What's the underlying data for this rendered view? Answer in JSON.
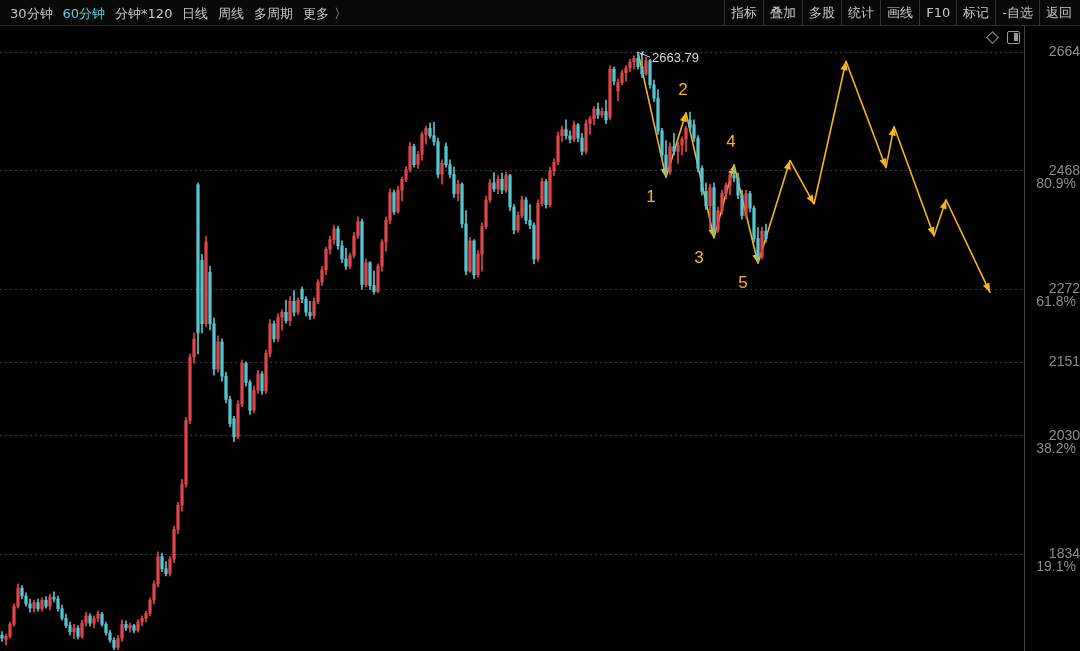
{
  "chart_data": [
    {
      "type": "other",
      "annotations": [
        "30分钟",
        "60分钟",
        "分钟*120",
        "日线",
        "周线",
        "多周期",
        "更多 〉"
      ],
      "colors": [
        "#c8c8c8",
        "#5fd0d8",
        "#c8c8c8",
        "#c8c8c8",
        "#c8c8c8",
        "#c8c8c8",
        "#c8c8c8"
      ]
    },
    {
      "type": "other",
      "annotations": [
        "指标",
        "叠加",
        "多股",
        "统计",
        "画线",
        "F10",
        "标记",
        "-自选",
        "返回"
      ],
      "colors": [
        "#c8c8c8",
        "#c8c8c8",
        "#c8c8c8",
        "#c8c8c8",
        "#c8c8c8",
        "#c8c8c8",
        "#c8c8c8",
        "#c8c8c8",
        "#c8c8c8"
      ]
    },
    {
      "type": "candlestick",
      "categories": [
        null,
        null,
        null,
        null,
        null,
        null,
        null,
        null,
        null,
        null,
        null,
        null,
        null,
        null,
        null,
        null,
        null,
        null,
        null,
        null,
        null,
        null,
        null,
        null,
        null,
        null,
        null,
        null,
        null,
        null,
        null,
        null,
        null,
        null,
        null,
        null,
        null,
        null,
        null,
        null,
        null,
        null,
        null,
        null,
        null,
        null,
        null,
        null,
        null,
        null,
        null,
        null,
        null,
        null,
        null,
        null,
        null,
        null,
        null,
        null,
        null,
        null,
        null,
        null,
        null,
        null,
        null,
        null,
        null,
        null,
        null,
        null,
        null,
        null,
        null,
        null,
        null,
        null,
        null,
        null,
        null,
        null,
        null,
        null,
        null,
        null,
        null,
        null,
        null,
        null,
        null,
        null,
        null,
        null,
        null,
        null,
        null,
        null,
        null,
        null,
        null,
        null,
        null,
        null,
        null,
        null,
        null,
        null,
        null,
        null,
        null,
        null,
        null,
        null,
        null,
        null,
        null,
        null,
        null,
        null,
        null,
        null,
        null,
        null,
        null,
        null,
        null,
        null,
        null,
        null,
        null,
        null,
        null,
        null,
        null,
        null,
        null,
        null,
        null,
        null,
        null,
        null,
        null,
        null,
        null,
        null,
        null,
        null,
        null,
        null,
        null,
        null,
        null,
        null,
        null,
        null,
        null,
        null,
        null,
        null,
        null,
        null,
        null,
        null,
        null,
        null,
        null,
        null,
        null,
        null,
        null,
        null,
        null,
        null,
        null,
        null,
        null,
        null,
        null,
        null,
        null,
        null,
        null,
        null,
        null,
        null,
        null,
        null,
        null,
        null,
        null,
        null,
        null,
        null,
        null,
        null,
        null,
        null,
        null,
        null,
        null,
        null,
        null,
        null,
        null,
        null,
        null,
        null,
        null,
        null,
        null,
        null,
        null,
        null,
        null,
        null,
        null,
        null,
        null,
        null,
        null,
        null,
        null,
        null,
        null,
        null,
        null,
        null,
        null,
        null,
        null,
        null,
        null,
        null,
        null,
        null,
        null,
        null,
        null,
        null,
        null,
        null,
        null,
        null,
        null,
        null,
        null,
        null,
        null,
        null,
        null,
        null,
        null,
        null,
        null,
        null
      ],
      "ohlc": [
        [
          1700,
          1706,
          1690,
          1695
        ],
        [
          1693,
          1702,
          1684,
          1698
        ],
        [
          1698,
          1722,
          1695,
          1718
        ],
        [
          1718,
          1752,
          1715,
          1748
        ],
        [
          1748,
          1785,
          1745,
          1778
        ],
        [
          1778,
          1782,
          1760,
          1765
        ],
        [
          1765,
          1770,
          1748,
          1752
        ],
        [
          1752,
          1760,
          1738,
          1745
        ],
        [
          1745,
          1758,
          1738,
          1754
        ],
        [
          1754,
          1760,
          1740,
          1744
        ],
        [
          1744,
          1762,
          1740,
          1758
        ],
        [
          1758,
          1764,
          1745,
          1748
        ],
        [
          1748,
          1768,
          1742,
          1763
        ],
        [
          1763,
          1772,
          1755,
          1760
        ],
        [
          1760,
          1765,
          1740,
          1744
        ],
        [
          1744,
          1750,
          1725,
          1728
        ],
        [
          1728,
          1735,
          1712,
          1716
        ],
        [
          1716,
          1722,
          1700,
          1706
        ],
        [
          1706,
          1718,
          1695,
          1712
        ],
        [
          1712,
          1716,
          1694,
          1698
        ],
        [
          1698,
          1725,
          1695,
          1720
        ],
        [
          1720,
          1738,
          1715,
          1732
        ],
        [
          1732,
          1736,
          1715,
          1720
        ],
        [
          1720,
          1732,
          1712,
          1728
        ],
        [
          1728,
          1740,
          1722,
          1735
        ],
        [
          1735,
          1738,
          1715,
          1718
        ],
        [
          1718,
          1722,
          1700,
          1704
        ],
        [
          1704,
          1708,
          1688,
          1692
        ],
        [
          1692,
          1696,
          1676,
          1680
        ],
        [
          1680,
          1700,
          1676,
          1695
        ],
        [
          1695,
          1725,
          1690,
          1718
        ],
        [
          1718,
          1724,
          1708,
          1712
        ],
        [
          1712,
          1720,
          1705,
          1716
        ],
        [
          1716,
          1718,
          1704,
          1708
        ],
        [
          1708,
          1726,
          1705,
          1722
        ],
        [
          1722,
          1732,
          1716,
          1728
        ],
        [
          1728,
          1740,
          1722,
          1736
        ],
        [
          1736,
          1762,
          1732,
          1758
        ],
        [
          1758,
          1790,
          1752,
          1785
        ],
        [
          1785,
          1838,
          1780,
          1830
        ],
        [
          1830,
          1836,
          1805,
          1810
        ],
        [
          1810,
          1822,
          1798,
          1802
        ],
        [
          1802,
          1830,
          1798,
          1826
        ],
        [
          1826,
          1880,
          1820,
          1875
        ],
        [
          1875,
          1920,
          1868,
          1915
        ],
        [
          1915,
          1958,
          1905,
          1950
        ],
        [
          1950,
          2060,
          1945,
          2055
        ],
        [
          2055,
          2165,
          2050,
          2160
        ],
        [
          2160,
          2200,
          2150,
          2190
        ],
        [
          2445,
          2448,
          2165,
          2200
        ],
        [
          2320,
          2330,
          2200,
          2215
        ],
        [
          2215,
          2360,
          2210,
          2350
        ],
        [
          2300,
          2310,
          2205,
          2215
        ],
        [
          2215,
          2225,
          2130,
          2140
        ],
        [
          2140,
          2195,
          2135,
          2185
        ],
        [
          2185,
          2190,
          2120,
          2128
        ],
        [
          2128,
          2135,
          2084,
          2090
        ],
        [
          2090,
          2095,
          2045,
          2050
        ],
        [
          2058,
          2062,
          2020,
          2028
        ],
        [
          2028,
          2088,
          2025,
          2082
        ],
        [
          2082,
          2155,
          2078,
          2150
        ],
        [
          2150,
          2152,
          2112,
          2118
        ],
        [
          2118,
          2122,
          2065,
          2072
        ],
        [
          2072,
          2112,
          2068,
          2105
        ],
        [
          2105,
          2138,
          2100,
          2132
        ],
        [
          2132,
          2136,
          2098,
          2104
        ],
        [
          2104,
          2172,
          2100,
          2166
        ],
        [
          2166,
          2222,
          2160,
          2215
        ],
        [
          2215,
          2220,
          2185,
          2190
        ],
        [
          2190,
          2232,
          2186,
          2226
        ],
        [
          2226,
          2238,
          2204,
          2234
        ],
        [
          2234,
          2254,
          2216,
          2220
        ],
        [
          2220,
          2260,
          2212,
          2252
        ],
        [
          2252,
          2270,
          2228,
          2234
        ],
        [
          2234,
          2258,
          2230,
          2254
        ],
        [
          2272,
          2276,
          2250,
          2256
        ],
        [
          2256,
          2260,
          2228,
          2234
        ],
        [
          2234,
          2252,
          2222,
          2228
        ],
        [
          2228,
          2258,
          2224,
          2252
        ],
        [
          2252,
          2288,
          2248,
          2284
        ],
        [
          2284,
          2310,
          2278,
          2304
        ],
        [
          2304,
          2342,
          2296,
          2338
        ],
        [
          2338,
          2360,
          2330,
          2354
        ],
        [
          2354,
          2378,
          2346,
          2372
        ],
        [
          2372,
          2376,
          2338,
          2344
        ],
        [
          2344,
          2352,
          2316,
          2322
        ],
        [
          2322,
          2340,
          2305,
          2310
        ],
        [
          2310,
          2332,
          2306,
          2328
        ],
        [
          2328,
          2366,
          2324,
          2360
        ],
        [
          2360,
          2392,
          2356,
          2384
        ],
        [
          2384,
          2388,
          2272,
          2280
        ],
        [
          2280,
          2322,
          2276,
          2316
        ],
        [
          2316,
          2318,
          2272,
          2278
        ],
        [
          2278,
          2302,
          2264,
          2268
        ],
        [
          2268,
          2314,
          2266,
          2310
        ],
        [
          2310,
          2354,
          2302,
          2350
        ],
        [
          2350,
          2392,
          2335,
          2386
        ],
        [
          2386,
          2438,
          2380,
          2432
        ],
        [
          2432,
          2436,
          2396,
          2400
        ],
        [
          2400,
          2442,
          2398,
          2436
        ],
        [
          2436,
          2458,
          2418,
          2454
        ],
        [
          2454,
          2475,
          2450,
          2470
        ],
        [
          2470,
          2515,
          2466,
          2508
        ],
        [
          2508,
          2512,
          2474,
          2478
        ],
        [
          2478,
          2500,
          2472,
          2495
        ],
        [
          2495,
          2532,
          2485,
          2528
        ],
        [
          2528,
          2542,
          2512,
          2538
        ],
        [
          2538,
          2547,
          2522,
          2526
        ],
        [
          2526,
          2548,
          2510,
          2516
        ],
        [
          2516,
          2522,
          2456,
          2462
        ],
        [
          2462,
          2486,
          2446,
          2480
        ],
        [
          2508,
          2514,
          2474,
          2478
        ],
        [
          2478,
          2486,
          2456,
          2462
        ],
        [
          2462,
          2474,
          2424,
          2430
        ],
        [
          2430,
          2452,
          2418,
          2446
        ],
        [
          2446,
          2448,
          2374,
          2380
        ],
        [
          2380,
          2402,
          2296,
          2302
        ],
        [
          2302,
          2358,
          2300,
          2352
        ],
        [
          2352,
          2354,
          2290,
          2296
        ],
        [
          2296,
          2336,
          2292,
          2330
        ],
        [
          2330,
          2382,
          2302,
          2376
        ],
        [
          2376,
          2426,
          2372,
          2420
        ],
        [
          2420,
          2454,
          2416,
          2448
        ],
        [
          2448,
          2465,
          2434,
          2438
        ],
        [
          2438,
          2460,
          2430,
          2454
        ],
        [
          2454,
          2464,
          2430,
          2436
        ],
        [
          2436,
          2466,
          2432,
          2460
        ],
        [
          2460,
          2462,
          2402,
          2408
        ],
        [
          2408,
          2412,
          2364,
          2370
        ],
        [
          2370,
          2400,
          2366,
          2394
        ],
        [
          2394,
          2426,
          2390,
          2420
        ],
        [
          2420,
          2424,
          2380,
          2386
        ],
        [
          2386,
          2412,
          2372,
          2378
        ],
        [
          2378,
          2382,
          2314,
          2322
        ],
        [
          2322,
          2420,
          2318,
          2414
        ],
        [
          2414,
          2456,
          2410,
          2450
        ],
        [
          2450,
          2454,
          2406,
          2412
        ],
        [
          2412,
          2474,
          2408,
          2468
        ],
        [
          2468,
          2488,
          2460,
          2482
        ],
        [
          2482,
          2532,
          2478,
          2526
        ],
        [
          2526,
          2542,
          2516,
          2536
        ],
        [
          2536,
          2552,
          2520,
          2526
        ],
        [
          2526,
          2534,
          2514,
          2520
        ],
        [
          2520,
          2550,
          2516,
          2544
        ],
        [
          2544,
          2546,
          2516,
          2522
        ],
        [
          2522,
          2530,
          2494,
          2500
        ],
        [
          2500,
          2552,
          2496,
          2546
        ],
        [
          2546,
          2558,
          2528,
          2554
        ],
        [
          2554,
          2574,
          2544,
          2570
        ],
        [
          2570,
          2580,
          2554,
          2560
        ],
        [
          2560,
          2572,
          2556,
          2566
        ],
        [
          2566,
          2585,
          2546,
          2552
        ],
        [
          2556,
          2642,
          2552,
          2636
        ],
        [
          2636,
          2640,
          2610,
          2616
        ],
        [
          2600,
          2620,
          2584,
          2614
        ],
        [
          2614,
          2634,
          2610,
          2630
        ],
        [
          2630,
          2642,
          2616,
          2638
        ],
        [
          2638,
          2652,
          2632,
          2648
        ],
        [
          2648,
          2658,
          2636,
          2654
        ],
        [
          2654,
          2663.79,
          2636,
          2640
        ],
        [
          2640,
          2660,
          2622,
          2628
        ],
        [
          2628,
          2656,
          2626,
          2650
        ],
        [
          2650,
          2652,
          2604,
          2610
        ],
        [
          2610,
          2618,
          2582,
          2588
        ],
        [
          2588,
          2602,
          2528,
          2534
        ],
        [
          2534,
          2538,
          2488,
          2494
        ],
        [
          2494,
          2518,
          2460,
          2466
        ],
        [
          2466,
          2514,
          2462,
          2508
        ],
        [
          2508,
          2530,
          2494,
          2500
        ],
        [
          2500,
          2516,
          2480,
          2510
        ],
        [
          2510,
          2524,
          2494,
          2520
        ],
        [
          2520,
          2542,
          2500,
          2538
        ],
        [
          2552,
          2565,
          2534,
          2540
        ],
        [
          2544,
          2552,
          2516,
          2522
        ],
        [
          2522,
          2526,
          2466,
          2472
        ],
        [
          2472,
          2476,
          2428,
          2434
        ],
        [
          2434,
          2448,
          2404,
          2410
        ],
        [
          2410,
          2446,
          2372,
          2440
        ],
        [
          2440,
          2448,
          2362,
          2370
        ],
        [
          2370,
          2408,
          2366,
          2402
        ],
        [
          2402,
          2436,
          2396,
          2430
        ],
        [
          2430,
          2448,
          2422,
          2444
        ],
        [
          2444,
          2464,
          2428,
          2460
        ],
        [
          2460,
          2474,
          2450,
          2456
        ],
        [
          2456,
          2464,
          2422,
          2428
        ],
        [
          2428,
          2436,
          2388,
          2394
        ],
        [
          2394,
          2436,
          2390,
          2430
        ],
        [
          2430,
          2434,
          2400,
          2406
        ],
        [
          2406,
          2410,
          2350,
          2356
        ],
        [
          2356,
          2374,
          2318,
          2326
        ],
        [
          2326,
          2375,
          2322,
          2368
        ],
        [
          2368,
          2380,
          2350,
          2356
        ],
        null,
        null,
        null,
        null,
        null,
        null,
        null,
        null,
        null,
        null,
        null,
        null,
        null,
        null,
        null,
        null,
        null,
        null,
        null,
        null,
        null,
        null,
        null,
        null,
        null,
        null,
        null,
        null,
        null,
        null,
        null,
        null,
        null,
        null,
        null,
        null,
        null,
        null,
        null,
        null,
        null,
        null,
        null,
        null,
        null,
        null,
        null,
        null,
        null,
        null,
        null,
        null,
        null,
        null,
        null,
        null,
        null,
        null,
        null,
        null,
        null,
        null,
        null,
        null
      ],
      "colors": [
        "#56c6cf",
        "#e0454b",
        "#e0454b",
        "#e0454b",
        "#e0454b",
        "#56c6cf",
        "#56c6cf",
        "#56c6cf",
        "#e0454b",
        "#56c6cf",
        "#e0454b",
        "#56c6cf",
        "#e0454b",
        "#56c6cf",
        "#56c6cf",
        "#56c6cf",
        "#56c6cf",
        "#56c6cf",
        "#e0454b",
        "#56c6cf",
        "#e0454b",
        "#e0454b",
        "#56c6cf",
        "#e0454b",
        "#e0454b",
        "#56c6cf",
        "#56c6cf",
        "#56c6cf",
        "#56c6cf",
        "#e0454b",
        "#e0454b",
        "#56c6cf",
        "#e0454b",
        "#56c6cf",
        "#e0454b",
        "#e0454b",
        "#e0454b",
        "#e0454b",
        "#e0454b",
        "#e0454b",
        "#56c6cf",
        "#56c6cf",
        "#e0454b",
        "#e0454b",
        "#e0454b",
        "#e0454b",
        "#e0454b",
        "#e0454b",
        "#e0454b",
        "#56c6cf",
        "#56c6cf",
        "#e0454b",
        "#56c6cf",
        "#56c6cf",
        "#e0454b",
        "#56c6cf",
        "#56c6cf",
        "#56c6cf",
        "#56c6cf",
        "#e0454b",
        "#e0454b",
        "#56c6cf",
        "#56c6cf",
        "#e0454b",
        "#e0454b",
        "#56c6cf",
        "#e0454b",
        "#e0454b",
        "#56c6cf",
        "#e0454b",
        "#e0454b",
        "#56c6cf",
        "#e0454b",
        "#56c6cf",
        "#e0454b",
        "#56c6cf",
        "#56c6cf",
        "#56c6cf",
        "#e0454b",
        "#e0454b",
        "#e0454b",
        "#e0454b",
        "#e0454b",
        "#e0454b",
        "#56c6cf",
        "#56c6cf",
        "#56c6cf",
        "#e0454b",
        "#e0454b",
        "#e0454b",
        "#56c6cf",
        "#e0454b",
        "#56c6cf",
        "#56c6cf",
        "#e0454b",
        "#e0454b",
        "#e0454b",
        "#e0454b",
        "#56c6cf",
        "#e0454b",
        "#e0454b",
        "#e0454b",
        "#e0454b",
        "#56c6cf",
        "#e0454b",
        "#e0454b",
        "#e0454b",
        "#56c6cf",
        "#56c6cf",
        "#56c6cf",
        "#e0454b",
        "#56c6cf",
        "#56c6cf",
        "#56c6cf",
        "#e0454b",
        "#56c6cf",
        "#56c6cf",
        "#e0454b",
        "#56c6cf",
        "#e0454b",
        "#e0454b",
        "#e0454b",
        "#e0454b",
        "#56c6cf",
        "#e0454b",
        "#56c6cf",
        "#e0454b",
        "#56c6cf",
        "#56c6cf",
        "#e0454b",
        "#e0454b",
        "#56c6cf",
        "#56c6cf",
        "#56c6cf",
        "#e0454b",
        "#e0454b",
        "#56c6cf",
        "#e0454b",
        "#e0454b",
        "#e0454b",
        "#e0454b",
        "#56c6cf",
        "#56c6cf",
        "#e0454b",
        "#56c6cf",
        "#56c6cf",
        "#e0454b",
        "#e0454b",
        "#e0454b",
        "#56c6cf",
        "#e0454b",
        "#56c6cf",
        "#e0454b",
        "#56c6cf",
        "#e0454b",
        "#e0454b",
        "#e0454b",
        "#e0454b",
        "#e0454b",
        "#56c6cf",
        "#56c6cf",
        "#e0454b",
        "#56c6cf",
        "#56c6cf",
        "#56c6cf",
        "#56c6cf",
        "#56c6cf",
        "#e0454b",
        "#56c6cf",
        "#e0454b",
        "#e0454b",
        "#e0454b",
        "#56c6cf",
        "#56c6cf",
        "#56c6cf",
        "#56c6cf",
        "#56c6cf",
        "#e0454b",
        "#56c6cf",
        "#e0454b",
        "#e0454b",
        "#e0454b",
        "#e0454b",
        "#56c6cf",
        "#56c6cf",
        "#56c6cf",
        "#e0454b",
        "#56c6cf",
        "#56c6cf",
        "#56c6cf",
        "#e0454b",
        "#56c6cf",
        null,
        null,
        null,
        null,
        null,
        null,
        null,
        null,
        null,
        null,
        null,
        null,
        null,
        null,
        null,
        null,
        null,
        null,
        null,
        null,
        null,
        null,
        null,
        null,
        null,
        null,
        null,
        null,
        null,
        null,
        null,
        null,
        null,
        null,
        null,
        null,
        null,
        null,
        null,
        null,
        null,
        null,
        null,
        null,
        null,
        null,
        null,
        null,
        null,
        null,
        null,
        null,
        null,
        null,
        null,
        null,
        null,
        null,
        null,
        null,
        null,
        null,
        null,
        null
      ],
      "series": [
        {
          "type": "line",
          "color": "#f5b51c",
          "values": [
            null,
            null,
            null,
            null,
            null,
            null,
            null,
            null,
            null,
            null,
            null,
            null,
            null,
            null,
            null,
            null,
            null,
            null,
            null,
            null,
            null,
            null,
            null,
            null,
            null,
            null,
            null,
            null,
            null,
            null,
            null,
            null,
            null,
            null,
            null,
            null,
            null,
            null,
            null,
            null,
            null,
            null,
            null,
            null,
            null,
            null,
            null,
            null,
            null,
            null,
            null,
            null,
            null,
            null,
            null,
            null,
            null,
            null,
            null,
            null,
            null,
            null,
            null,
            null,
            null,
            null,
            null,
            null,
            null,
            null,
            null,
            null,
            null,
            null,
            null,
            null,
            null,
            null,
            null,
            null,
            null,
            null,
            null,
            null,
            null,
            null,
            null,
            null,
            null,
            null,
            null,
            null,
            null,
            null,
            null,
            null,
            null,
            null,
            null,
            null,
            null,
            null,
            null,
            null,
            null,
            null,
            null,
            null,
            null,
            null,
            null,
            null,
            null,
            null,
            null,
            null,
            null,
            null,
            null,
            null,
            null,
            null,
            null,
            null,
            null,
            null,
            null,
            null,
            null,
            null,
            null,
            null,
            null,
            null,
            null,
            null,
            null,
            null,
            null,
            null,
            null,
            null,
            null,
            null,
            null,
            null,
            null,
            null,
            null,
            null,
            null,
            null,
            null,
            null,
            null,
            null,
            null,
            null,
            null,
            2664,
            null,
            null,
            null,
            null,
            null,
            null,
            2457,
            null,
            null,
            null,
            null,
            2564,
            null,
            null,
            null,
            null,
            null,
            null,
            2357,
            null,
            null,
            null,
            null,
            2478,
            null,
            null,
            null,
            null,
            null,
            2315,
            null,
            null,
            null,
            null,
            null,
            null,
            null,
            2485,
            null,
            null,
            null,
            null,
            null,
            2413,
            null,
            null,
            null,
            null,
            null,
            null,
            null,
            2649,
            null,
            null,
            null,
            null,
            null,
            null,
            null,
            null,
            null,
            2473,
            null,
            2541,
            null,
            null,
            null,
            null,
            null,
            null,
            null,
            null,
            null,
            2360,
            null,
            null,
            2420,
            null,
            null,
            null,
            null,
            null,
            null,
            null,
            null,
            null,
            null,
            2267,
            null,
            null,
            null,
            null,
            null,
            null,
            null,
            null
          ]
        }
      ],
      "ylim": [
        1674,
        2704
      ],
      "yticks": [
        1834,
        2030,
        2151,
        2272,
        2468,
        2664
      ],
      "y2lim": [
        3.51,
        103.9
      ],
      "y2ticks": [
        {
          "value": 19.1,
          "label": "19.1%"
        },
        {
          "value": 38.2,
          "label": "38.2%"
        },
        {
          "value": 61.8,
          "label": "61.8%"
        },
        {
          "value": 80.9,
          "label": "80.9%"
        }
      ],
      "grid": "y",
      "tick_labels": "y",
      "annotations": [
        "2663.79",
        "1",
        "2",
        "3",
        "4",
        "5"
      ]
    }
  ]
}
